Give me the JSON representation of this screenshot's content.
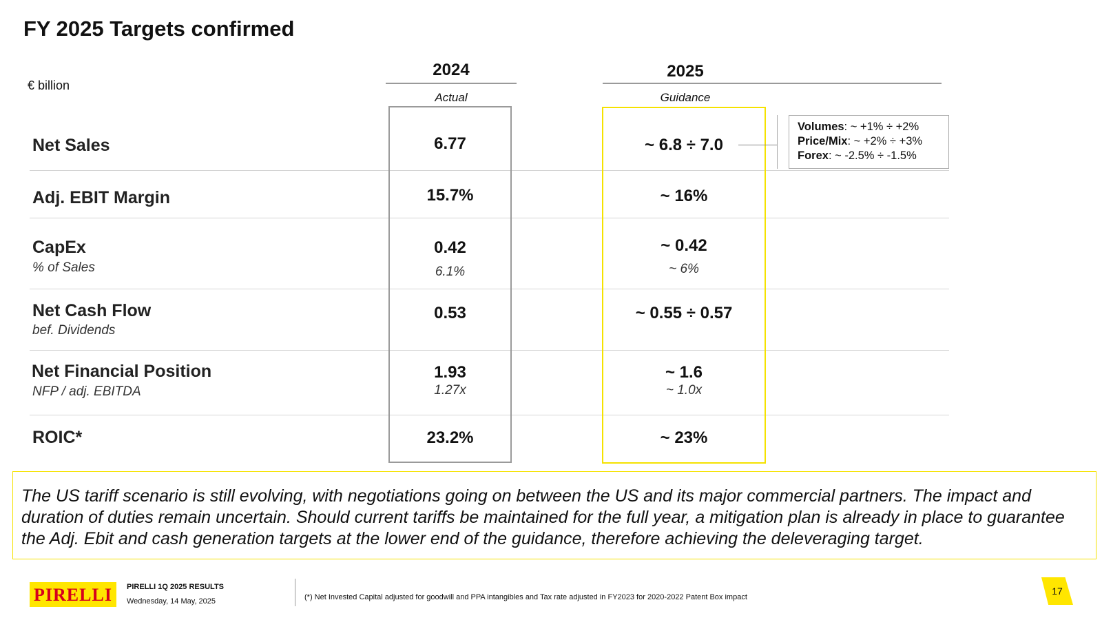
{
  "title": "FY 2025 Targets confirmed",
  "unit": "€ billion",
  "columns": {
    "actual": {
      "year": "2024",
      "label": "Actual"
    },
    "guidance": {
      "year": "2025",
      "label": "Guidance"
    }
  },
  "rows": [
    {
      "label": "Net Sales",
      "sublabel": "",
      "actual": "6.77",
      "actual_sub": "",
      "guidance": "~ 6.8 ÷ 7.0",
      "guidance_sub": ""
    },
    {
      "label": "Adj. EBIT Margin",
      "sublabel": "",
      "actual": "15.7%",
      "actual_sub": "",
      "guidance": "~ 16%",
      "guidance_sub": ""
    },
    {
      "label": "CapEx",
      "sublabel": "% of Sales",
      "actual": "0.42",
      "actual_sub": "6.1%",
      "guidance": "~ 0.42",
      "guidance_sub": "~ 6%"
    },
    {
      "label": "Net Cash Flow",
      "sublabel": "bef. Dividends",
      "actual": "0.53",
      "actual_sub": "",
      "guidance": "~ 0.55 ÷ 0.57",
      "guidance_sub": ""
    },
    {
      "label": "Net Financial Position",
      "sublabel": "NFP / adj. EBITDA",
      "actual": "1.93",
      "actual_sub": "1.27x",
      "guidance": "~ 1.6",
      "guidance_sub": "~ 1.0x"
    },
    {
      "label": "ROIC*",
      "sublabel": "",
      "actual": "23.2%",
      "actual_sub": "",
      "guidance": "~ 23%",
      "guidance_sub": ""
    }
  ],
  "net_sales_drivers": [
    {
      "name": "Volumes",
      "value": ": ~ +1% ÷ +2%"
    },
    {
      "name": "Price/Mix",
      "value": ": ~ +2% ÷ +3%"
    },
    {
      "name": "Forex",
      "value": ": ~ -2.5% ÷ -1.5%"
    }
  ],
  "disclaimer": "The US tariff scenario is still evolving, with negotiations going on between the US and its major commercial partners. The impact and duration of duties remain uncertain. Should current tariffs be maintained for the full year, a mitigation plan is already in place to guarantee the Adj. Ebit and cash generation targets at the lower end of the guidance, therefore achieving the deleveraging target.",
  "footer": {
    "logo_text": "PIRELLI",
    "results_title": "PIRELLI 1Q 2025 RESULTS",
    "date": "Wednesday, 14 May, 2025",
    "footnote": "(*) Net Invested Capital adjusted for goodwill and PPA intangibles and Tax rate adjusted in FY2023 for 2020-2022 Patent Box impact",
    "page_number": "17"
  },
  "colors": {
    "brand_yellow": "#ffe600",
    "brand_red": "#d6001c",
    "guidance_frame": "#f5e200",
    "actual_frame": "#9a9a9a"
  }
}
